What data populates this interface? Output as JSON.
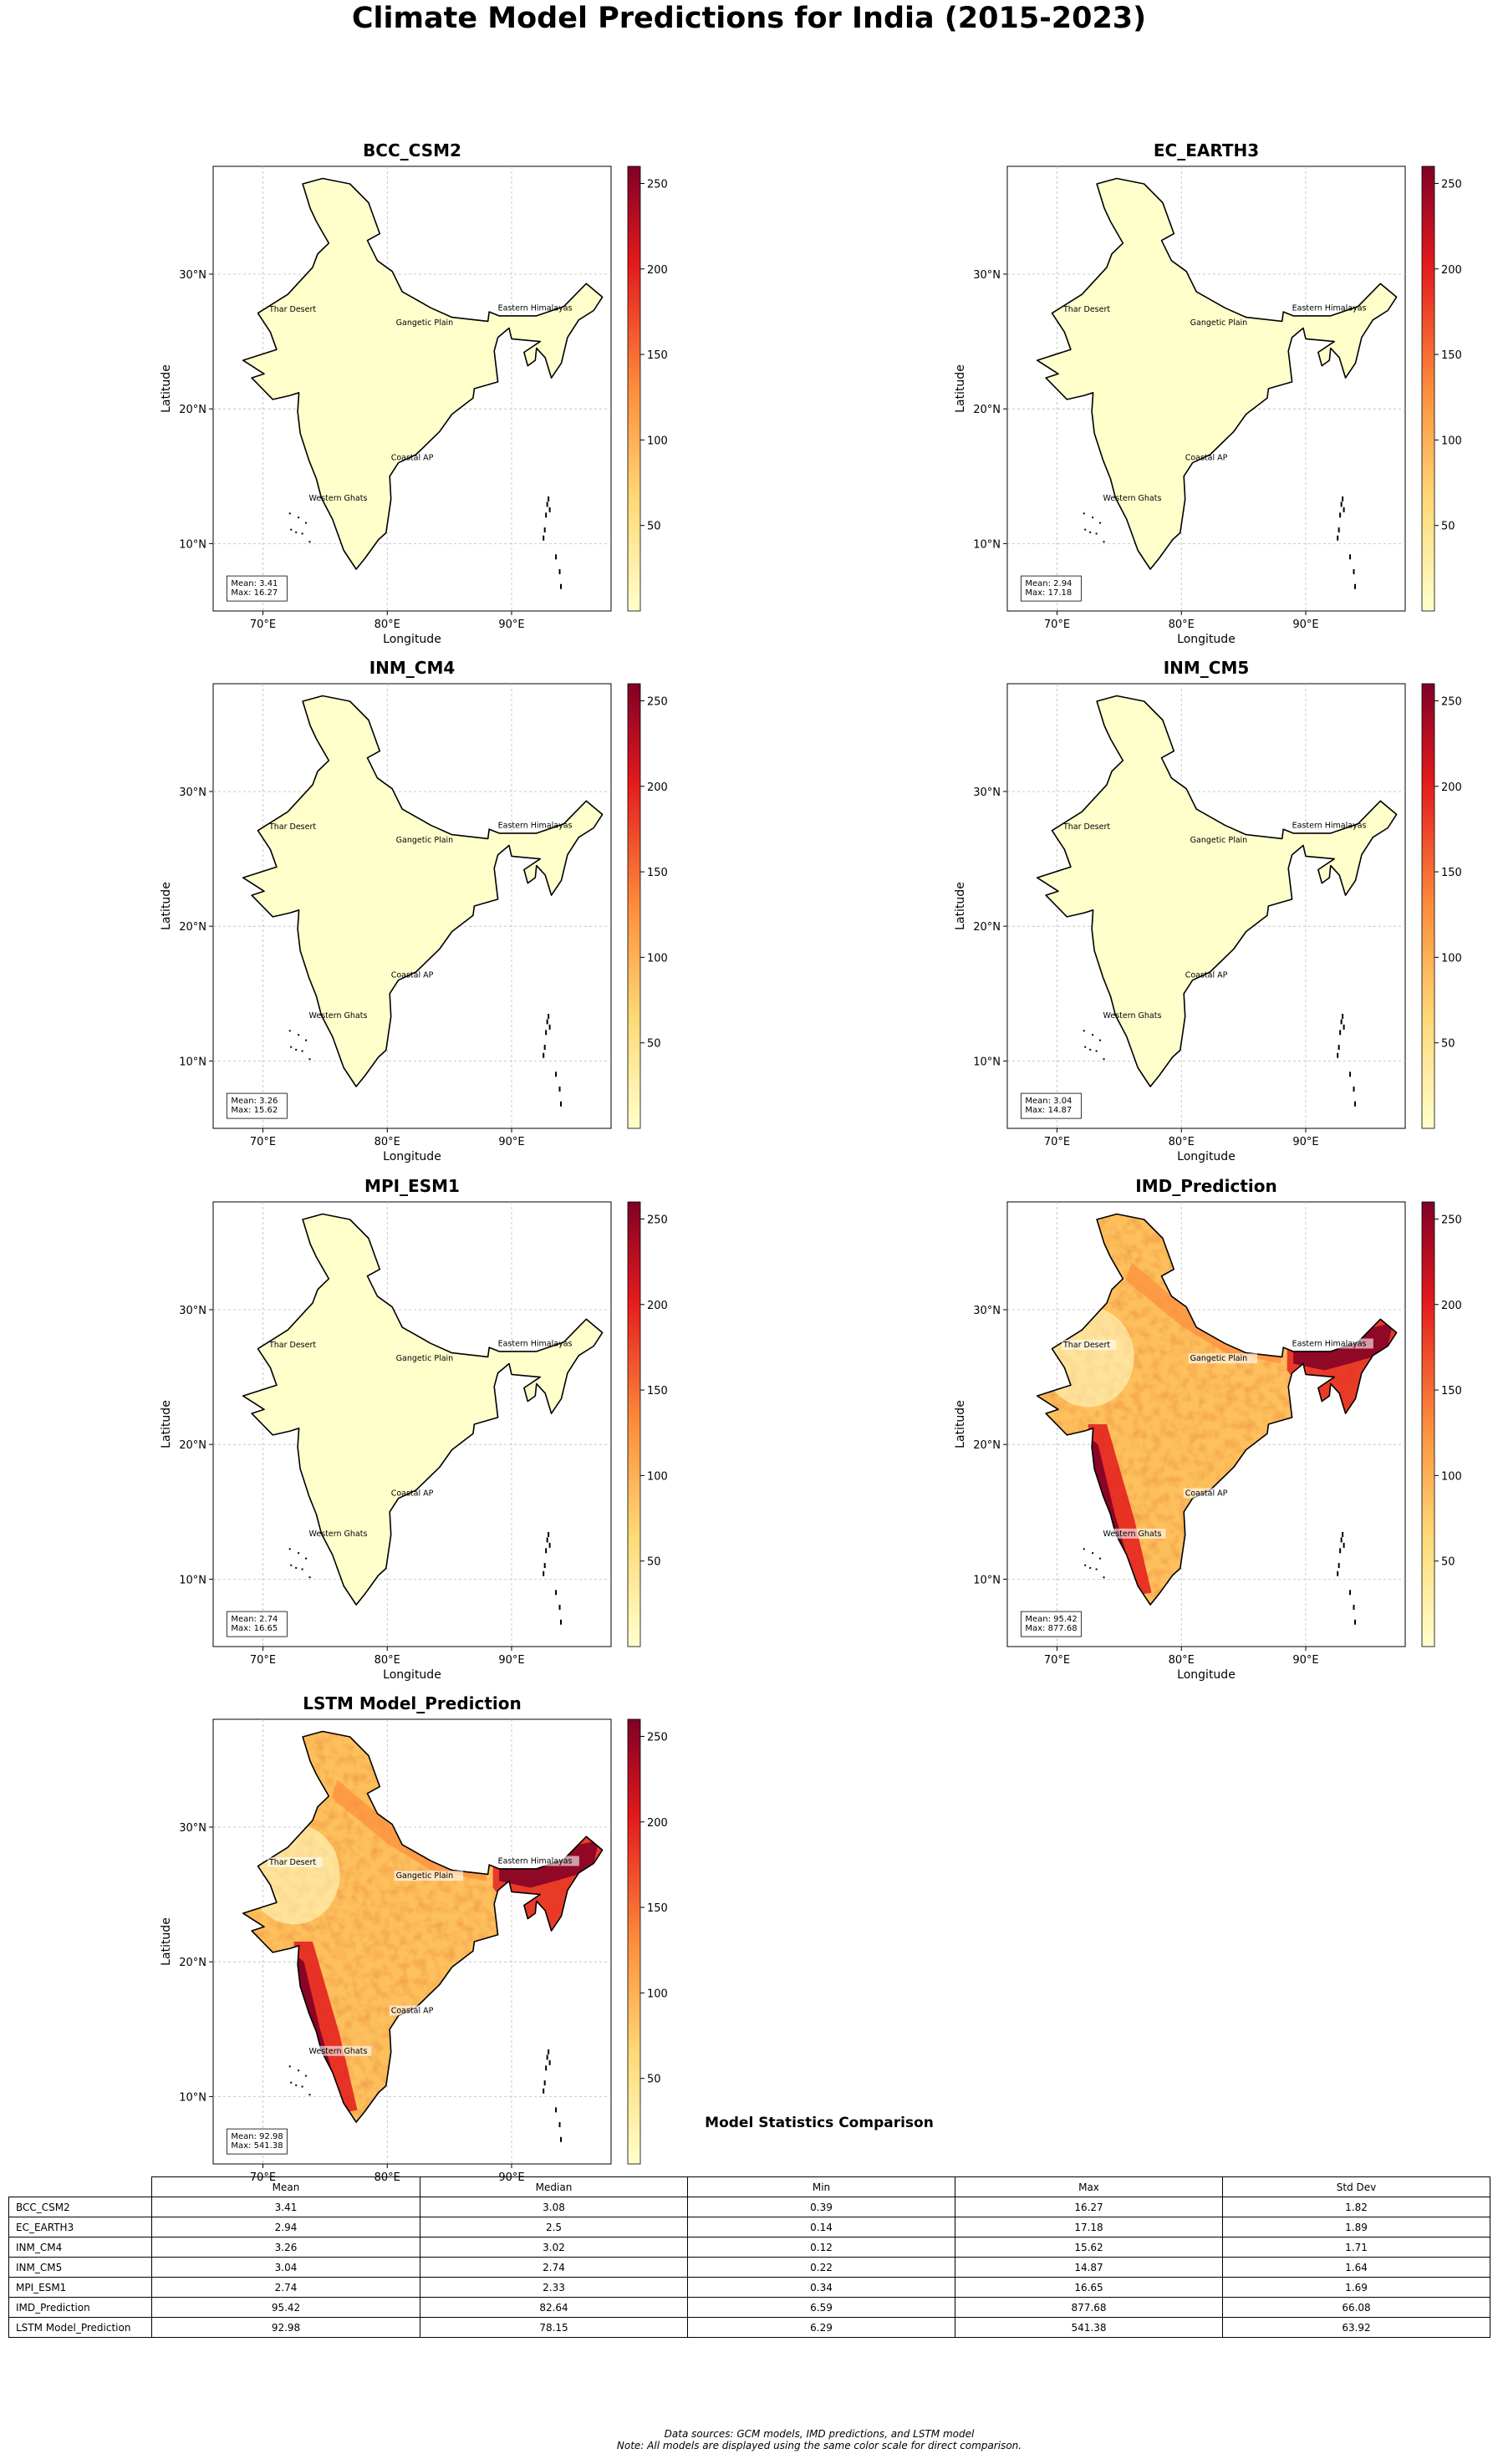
{
  "figure": {
    "title": "Climate Model Predictions for India (2015-2023)",
    "footer_line1": "Data sources: GCM models, IMD predictions, and LSTM model",
    "footer_line2": "Note: All models are displayed using the same color scale for direct comparison."
  },
  "colors": {
    "low": "#ffffcc",
    "mid_low": "#fed976",
    "mid": "#fd8d3c",
    "mid_high": "#e31a1c",
    "high": "#800026"
  },
  "chart_data": [
    {
      "type": "heatmap",
      "title": "BCC_CSM2",
      "xlabel": "Longitude",
      "ylabel": "Latitude",
      "xticks": [
        "70°E",
        "80°E",
        "90°E"
      ],
      "yticks": [
        "10°N",
        "20°N",
        "30°N"
      ],
      "xlim": [
        66,
        98
      ],
      "ylim": [
        5,
        38
      ],
      "colorbar_range": [
        0,
        260
      ],
      "colorbar_ticks": [
        "50",
        "100",
        "150",
        "200",
        "250"
      ],
      "regions": [
        "Thar Desert",
        "Gangetic Plain",
        "Eastern Himalayas",
        "Coastal AP",
        "Western Ghats"
      ],
      "stats_text": [
        "Mean: 3.41",
        "Max: 16.27"
      ],
      "mean": 3.41,
      "max": 16.27,
      "grid": true
    },
    {
      "type": "heatmap",
      "title": "EC_EARTH3",
      "xlabel": "Longitude",
      "ylabel": "Latitude",
      "xticks": [
        "70°E",
        "80°E",
        "90°E"
      ],
      "yticks": [
        "10°N",
        "20°N",
        "30°N"
      ],
      "xlim": [
        66,
        98
      ],
      "ylim": [
        5,
        38
      ],
      "colorbar_range": [
        0,
        260
      ],
      "colorbar_ticks": [
        "50",
        "100",
        "150",
        "200",
        "250"
      ],
      "regions": [
        "Thar Desert",
        "Gangetic Plain",
        "Eastern Himalayas",
        "Coastal AP",
        "Western Ghats"
      ],
      "stats_text": [
        "Mean: 2.94",
        "Max: 17.18"
      ],
      "mean": 2.94,
      "max": 17.18,
      "grid": true
    },
    {
      "type": "heatmap",
      "title": "INM_CM4",
      "xlabel": "Longitude",
      "ylabel": "Latitude",
      "xticks": [
        "70°E",
        "80°E",
        "90°E"
      ],
      "yticks": [
        "10°N",
        "20°N",
        "30°N"
      ],
      "xlim": [
        66,
        98
      ],
      "ylim": [
        5,
        38
      ],
      "colorbar_range": [
        0,
        260
      ],
      "colorbar_ticks": [
        "50",
        "100",
        "150",
        "200",
        "250"
      ],
      "regions": [
        "Thar Desert",
        "Gangetic Plain",
        "Eastern Himalayas",
        "Coastal AP",
        "Western Ghats"
      ],
      "stats_text": [
        "Mean: 3.26",
        "Max: 15.62"
      ],
      "mean": 3.26,
      "max": 15.62,
      "grid": true
    },
    {
      "type": "heatmap",
      "title": "INM_CM5",
      "xlabel": "Longitude",
      "ylabel": "Latitude",
      "xticks": [
        "70°E",
        "80°E",
        "90°E"
      ],
      "yticks": [
        "10°N",
        "20°N",
        "30°N"
      ],
      "xlim": [
        66,
        98
      ],
      "ylim": [
        5,
        38
      ],
      "colorbar_range": [
        0,
        260
      ],
      "colorbar_ticks": [
        "50",
        "100",
        "150",
        "200",
        "250"
      ],
      "regions": [
        "Thar Desert",
        "Gangetic Plain",
        "Eastern Himalayas",
        "Coastal AP",
        "Western Ghats"
      ],
      "stats_text": [
        "Mean: 3.04",
        "Max: 14.87"
      ],
      "mean": 3.04,
      "max": 14.87,
      "grid": true
    },
    {
      "type": "heatmap",
      "title": "MPI_ESM1",
      "xlabel": "Longitude",
      "ylabel": "Latitude",
      "xticks": [
        "70°E",
        "80°E",
        "90°E"
      ],
      "yticks": [
        "10°N",
        "20°N",
        "30°N"
      ],
      "xlim": [
        66,
        98
      ],
      "ylim": [
        5,
        38
      ],
      "colorbar_range": [
        0,
        260
      ],
      "colorbar_ticks": [
        "50",
        "100",
        "150",
        "200",
        "250"
      ],
      "regions": [
        "Thar Desert",
        "Gangetic Plain",
        "Eastern Himalayas",
        "Coastal AP",
        "Western Ghats"
      ],
      "stats_text": [
        "Mean: 2.74",
        "Max: 16.65"
      ],
      "mean": 2.74,
      "max": 16.65,
      "grid": true
    },
    {
      "type": "heatmap",
      "title": "IMD_Prediction",
      "xlabel": "Longitude",
      "ylabel": "Latitude",
      "xticks": [
        "70°E",
        "80°E",
        "90°E"
      ],
      "yticks": [
        "10°N",
        "20°N",
        "30°N"
      ],
      "xlim": [
        66,
        98
      ],
      "ylim": [
        5,
        38
      ],
      "colorbar_range": [
        0,
        260
      ],
      "colorbar_ticks": [
        "50",
        "100",
        "150",
        "200",
        "250"
      ],
      "regions": [
        "Thar Desert",
        "Gangetic Plain",
        "Eastern Himalayas",
        "Coastal AP",
        "Western Ghats"
      ],
      "stats_text": [
        "Mean: 95.42",
        "Max: 877.68"
      ],
      "mean": 95.42,
      "max": 877.68,
      "grid": true
    },
    {
      "type": "heatmap",
      "title": "LSTM Model_Prediction",
      "xlabel": "",
      "ylabel": "Latitude",
      "xticks": [
        "70°E",
        "80°E",
        "90°E"
      ],
      "yticks": [
        "10°N",
        "20°N",
        "30°N"
      ],
      "xlim": [
        66,
        98
      ],
      "ylim": [
        5,
        38
      ],
      "colorbar_range": [
        0,
        260
      ],
      "colorbar_ticks": [
        "50",
        "100",
        "150",
        "200",
        "250"
      ],
      "regions": [
        "Thar Desert",
        "Gangetic Plain",
        "Eastern Himalayas",
        "Coastal AP",
        "Western Ghats"
      ],
      "stats_text": [
        "Mean: 92.98",
        "Max: 541.38"
      ],
      "mean": 92.98,
      "max": 541.38,
      "grid": true
    },
    {
      "type": "table",
      "title": "Model Statistics Comparison",
      "columns": [
        "Mean",
        "Median",
        "Min",
        "Max",
        "Std Dev"
      ],
      "rows": [
        {
          "label": "BCC_CSM2",
          "values": [
            "3.41",
            "3.08",
            "0.39",
            "16.27",
            "1.82"
          ]
        },
        {
          "label": "EC_EARTH3",
          "values": [
            "2.94",
            "2.5",
            "0.14",
            "17.18",
            "1.89"
          ]
        },
        {
          "label": "INM_CM4",
          "values": [
            "3.26",
            "3.02",
            "0.12",
            "15.62",
            "1.71"
          ]
        },
        {
          "label": "INM_CM5",
          "values": [
            "3.04",
            "2.74",
            "0.22",
            "14.87",
            "1.64"
          ]
        },
        {
          "label": "MPI_ESM1",
          "values": [
            "2.74",
            "2.33",
            "0.34",
            "16.65",
            "1.69"
          ]
        },
        {
          "label": "IMD_Prediction",
          "values": [
            "95.42",
            "82.64",
            "6.59",
            "877.68",
            "66.08"
          ]
        },
        {
          "label": "LSTM Model_Prediction",
          "values": [
            "92.98",
            "78.15",
            "6.29",
            "541.38",
            "63.92"
          ]
        }
      ]
    }
  ]
}
